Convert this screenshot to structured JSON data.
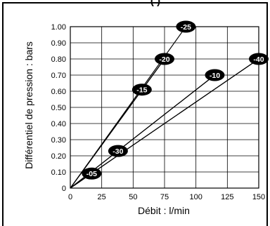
{
  "header": {
    "partial_title": "(                  )"
  },
  "colors": {
    "line": "#000000",
    "grid": "#000000",
    "badge_fill": "#000000",
    "badge_text": "#ffffff",
    "background": "#ffffff"
  },
  "chart_data": {
    "type": "line",
    "xlabel": "Débit : l/min",
    "ylabel": "Différentiel de pression : bars",
    "xlim": [
      0,
      150
    ],
    "ylim": [
      0,
      1.0
    ],
    "x_ticks": [
      0,
      25,
      50,
      75,
      100,
      125,
      150
    ],
    "x_tick_labels": [
      "0",
      "25",
      "50",
      "75",
      "100",
      "125",
      "150"
    ],
    "y_ticks": [
      0,
      0.1,
      0.2,
      0.3,
      0.4,
      0.5,
      0.6,
      0.7,
      0.8,
      0.9,
      1.0
    ],
    "y_tick_labels": [
      "0",
      "0.10",
      "0.20",
      "0.30",
      "0.40",
      "0.50",
      "0.60",
      "0.70",
      "0.80",
      "0.90",
      "1.00"
    ],
    "x_grid_step": 25,
    "y_grid_step": 0.1,
    "grid": true,
    "series": [
      {
        "name": "-25",
        "points": [
          [
            0,
            0
          ],
          [
            92,
            1.0
          ]
        ],
        "label_at": [
          92,
          1.0
        ]
      },
      {
        "name": "-20",
        "points": [
          [
            0,
            0
          ],
          [
            75,
            0.8
          ]
        ],
        "label_at": [
          75,
          0.8
        ]
      },
      {
        "name": "-15",
        "points": [
          [
            0,
            0
          ],
          [
            75,
            0.8
          ]
        ],
        "label_at": [
          57,
          0.61
        ]
      },
      {
        "name": "-40",
        "points": [
          [
            0,
            0
          ],
          [
            150,
            0.8
          ]
        ],
        "label_at": [
          150,
          0.8
        ]
      },
      {
        "name": "-10",
        "points": [
          [
            0,
            0
          ],
          [
            115,
            0.7
          ]
        ],
        "label_at": [
          115,
          0.7
        ]
      },
      {
        "name": "-30",
        "points": [
          [
            0,
            0
          ],
          [
            115,
            0.7
          ]
        ],
        "label_at": [
          38,
          0.23
        ]
      },
      {
        "name": "-05",
        "points": [
          [
            0,
            0
          ],
          [
            150,
            0.8
          ]
        ],
        "label_at": [
          17,
          0.09
        ]
      }
    ]
  }
}
